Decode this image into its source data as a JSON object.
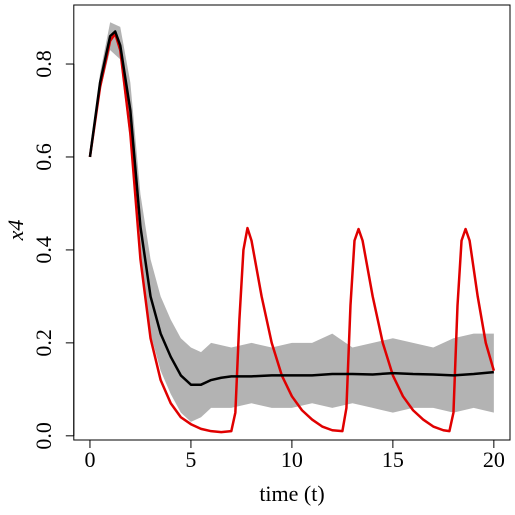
{
  "chart_data": {
    "type": "line",
    "xlabel": "time (t)",
    "ylabel": "x4",
    "xlim": [
      -0.8,
      20.8
    ],
    "xticks": [
      0,
      5,
      10,
      15,
      20
    ],
    "ylim": [
      -0.009,
      0.927
    ],
    "yticks": [
      {
        "value": 0,
        "label": "0.0"
      },
      0.2,
      0.4,
      0.6,
      0.8
    ],
    "band": {
      "color": "#b3b3b3",
      "x": [
        0,
        0.5,
        1,
        1.5,
        2,
        2.5,
        3,
        3.5,
        4,
        4.5,
        5,
        5.5,
        6,
        7,
        8,
        9,
        10,
        11,
        12,
        13,
        14,
        15,
        16,
        17,
        18,
        19,
        20
      ],
      "upper": [
        0.6,
        0.78,
        0.89,
        0.88,
        0.76,
        0.52,
        0.38,
        0.3,
        0.25,
        0.21,
        0.19,
        0.18,
        0.2,
        0.19,
        0.2,
        0.19,
        0.2,
        0.2,
        0.22,
        0.19,
        0.2,
        0.21,
        0.2,
        0.19,
        0.21,
        0.22,
        0.22
      ],
      "lower": [
        0.6,
        0.74,
        0.83,
        0.81,
        0.63,
        0.38,
        0.22,
        0.14,
        0.09,
        0.05,
        0.03,
        0.04,
        0.06,
        0.06,
        0.07,
        0.06,
        0.06,
        0.07,
        0.06,
        0.07,
        0.06,
        0.05,
        0.06,
        0.06,
        0.05,
        0.06,
        0.05
      ]
    },
    "series": [
      {
        "color": "#e00000",
        "x": [
          0,
          0.5,
          1,
          1.25,
          1.5,
          2,
          2.5,
          3,
          3.5,
          4,
          4.5,
          5,
          5.5,
          6,
          6.5,
          7,
          7.2,
          7.4,
          7.6,
          7.8,
          8,
          8.5,
          9,
          9.5,
          10,
          10.5,
          11,
          11.5,
          12,
          12.5,
          12.7,
          12.9,
          13.1,
          13.3,
          13.5,
          14,
          14.5,
          15,
          15.5,
          16,
          16.5,
          17,
          17.5,
          17.8,
          18,
          18.2,
          18.4,
          18.6,
          18.8,
          19.2,
          19.6,
          20
        ],
        "values": [
          0.6,
          0.75,
          0.85,
          0.865,
          0.83,
          0.65,
          0.38,
          0.21,
          0.12,
          0.07,
          0.04,
          0.025,
          0.015,
          0.01,
          0.008,
          0.01,
          0.05,
          0.25,
          0.4,
          0.447,
          0.42,
          0.3,
          0.2,
          0.13,
          0.085,
          0.055,
          0.035,
          0.02,
          0.012,
          0.01,
          0.06,
          0.28,
          0.42,
          0.445,
          0.42,
          0.3,
          0.2,
          0.13,
          0.085,
          0.055,
          0.035,
          0.02,
          0.012,
          0.01,
          0.05,
          0.28,
          0.42,
          0.445,
          0.42,
          0.3,
          0.2,
          0.14
        ]
      },
      {
        "color": "#000000",
        "x": [
          0,
          0.5,
          1,
          1.25,
          1.5,
          2,
          2.5,
          3,
          3.5,
          4,
          4.5,
          5,
          5.5,
          6,
          6.5,
          7,
          8,
          9,
          10,
          11,
          12,
          13,
          14,
          15,
          16,
          17,
          18,
          19,
          20
        ],
        "values": [
          0.6,
          0.76,
          0.86,
          0.87,
          0.84,
          0.7,
          0.45,
          0.3,
          0.22,
          0.17,
          0.13,
          0.11,
          0.11,
          0.12,
          0.125,
          0.128,
          0.128,
          0.13,
          0.13,
          0.13,
          0.133,
          0.133,
          0.132,
          0.135,
          0.133,
          0.132,
          0.13,
          0.133,
          0.137
        ]
      }
    ]
  }
}
